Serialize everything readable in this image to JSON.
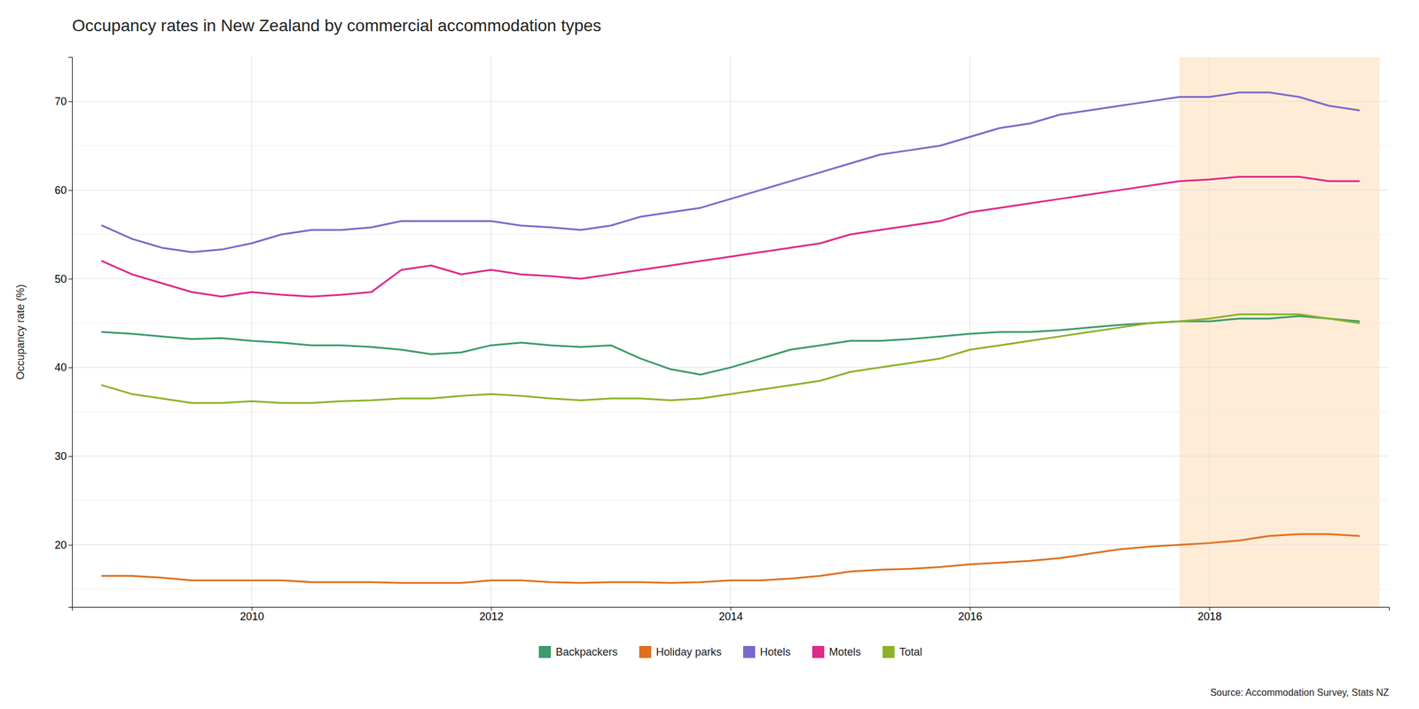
{
  "chart_data": {
    "type": "line",
    "title": "Occupancy rates in New Zealand by commercial accommodation types",
    "ylabel": "Occupancy rate (%)",
    "source": "Source: Accommodation Survey, Stats NZ",
    "x": [
      2008.75,
      2009.0,
      2009.25,
      2009.5,
      2009.75,
      2010.0,
      2010.25,
      2010.5,
      2010.75,
      2011.0,
      2011.25,
      2011.5,
      2011.75,
      2012.0,
      2012.25,
      2012.5,
      2012.75,
      2013.0,
      2013.25,
      2013.5,
      2013.75,
      2014.0,
      2014.25,
      2014.5,
      2014.75,
      2015.0,
      2015.25,
      2015.5,
      2015.75,
      2016.0,
      2016.25,
      2016.5,
      2016.75,
      2017.0,
      2017.25,
      2017.5,
      2017.75,
      2018.0,
      2018.25,
      2018.5,
      2018.75,
      2019.0,
      2019.25
    ],
    "series": [
      {
        "name": "Backpackers",
        "color": "#3B9B6A",
        "values": [
          44.0,
          43.8,
          43.5,
          43.2,
          43.3,
          43.0,
          42.8,
          42.5,
          42.5,
          42.3,
          42.0,
          41.5,
          41.7,
          42.5,
          42.8,
          42.5,
          42.3,
          42.5,
          41.0,
          39.8,
          39.2,
          40.0,
          41.0,
          42.0,
          42.5,
          43.0,
          43.0,
          43.2,
          43.5,
          43.8,
          44.0,
          44.0,
          44.2,
          44.5,
          44.8,
          45.0,
          45.2,
          45.2,
          45.5,
          45.5,
          45.8,
          45.5,
          45.2
        ]
      },
      {
        "name": "Holiday parks",
        "color": "#E07020",
        "values": [
          16.5,
          16.5,
          16.3,
          16.0,
          16.0,
          16.0,
          16.0,
          15.8,
          15.8,
          15.8,
          15.7,
          15.7,
          15.7,
          16.0,
          16.0,
          15.8,
          15.7,
          15.8,
          15.8,
          15.7,
          15.8,
          16.0,
          16.0,
          16.2,
          16.5,
          17.0,
          17.2,
          17.3,
          17.5,
          17.8,
          18.0,
          18.2,
          18.5,
          19.0,
          19.5,
          19.8,
          20.0,
          20.2,
          20.5,
          21.0,
          21.2,
          21.2,
          21.0
        ]
      },
      {
        "name": "Hotels",
        "color": "#7B68CC",
        "values": [
          56.0,
          54.5,
          53.5,
          53.0,
          53.3,
          54.0,
          55.0,
          55.5,
          55.5,
          55.8,
          56.5,
          56.5,
          56.5,
          56.5,
          56.0,
          55.8,
          55.5,
          56.0,
          57.0,
          57.5,
          58.0,
          59.0,
          60.0,
          61.0,
          62.0,
          63.0,
          64.0,
          64.5,
          65.0,
          66.0,
          67.0,
          67.5,
          68.5,
          69.0,
          69.5,
          70.0,
          70.5,
          70.5,
          71.0,
          71.0,
          70.5,
          69.5,
          69.0
        ]
      },
      {
        "name": "Motels",
        "color": "#E0298A",
        "values": [
          52.0,
          50.5,
          49.5,
          48.5,
          48.0,
          48.5,
          48.2,
          48.0,
          48.2,
          48.5,
          51.0,
          51.5,
          50.5,
          51.0,
          50.5,
          50.3,
          50.0,
          50.5,
          51.0,
          51.5,
          52.0,
          52.5,
          53.0,
          53.5,
          54.0,
          55.0,
          55.5,
          56.0,
          56.5,
          57.5,
          58.0,
          58.5,
          59.0,
          59.5,
          60.0,
          60.5,
          61.0,
          61.2,
          61.5,
          61.5,
          61.5,
          61.0,
          61.0
        ]
      },
      {
        "name": "Total",
        "color": "#8DB229",
        "values": [
          38.0,
          37.0,
          36.5,
          36.0,
          36.0,
          36.2,
          36.0,
          36.0,
          36.2,
          36.3,
          36.5,
          36.5,
          36.8,
          37.0,
          36.8,
          36.5,
          36.3,
          36.5,
          36.5,
          36.3,
          36.5,
          37.0,
          37.5,
          38.0,
          38.5,
          39.5,
          40.0,
          40.5,
          41.0,
          42.0,
          42.5,
          43.0,
          43.5,
          44.0,
          44.5,
          45.0,
          45.2,
          45.5,
          46.0,
          46.0,
          46.0,
          45.5,
          45.0
        ]
      }
    ],
    "xlim": [
      2008.5,
      2019.5
    ],
    "xticks": [
      2010,
      2012,
      2014,
      2016,
      2018
    ],
    "ylim": [
      13,
      75
    ],
    "yticks": [
      20,
      30,
      40,
      50,
      60,
      70
    ],
    "minor_yticks": [
      15,
      25,
      35,
      45,
      55,
      65
    ],
    "shade": {
      "xmin": 2017.75,
      "xmax": 2019.42,
      "color": "#FDDCB5"
    },
    "grid": true,
    "legend": "bottom"
  }
}
